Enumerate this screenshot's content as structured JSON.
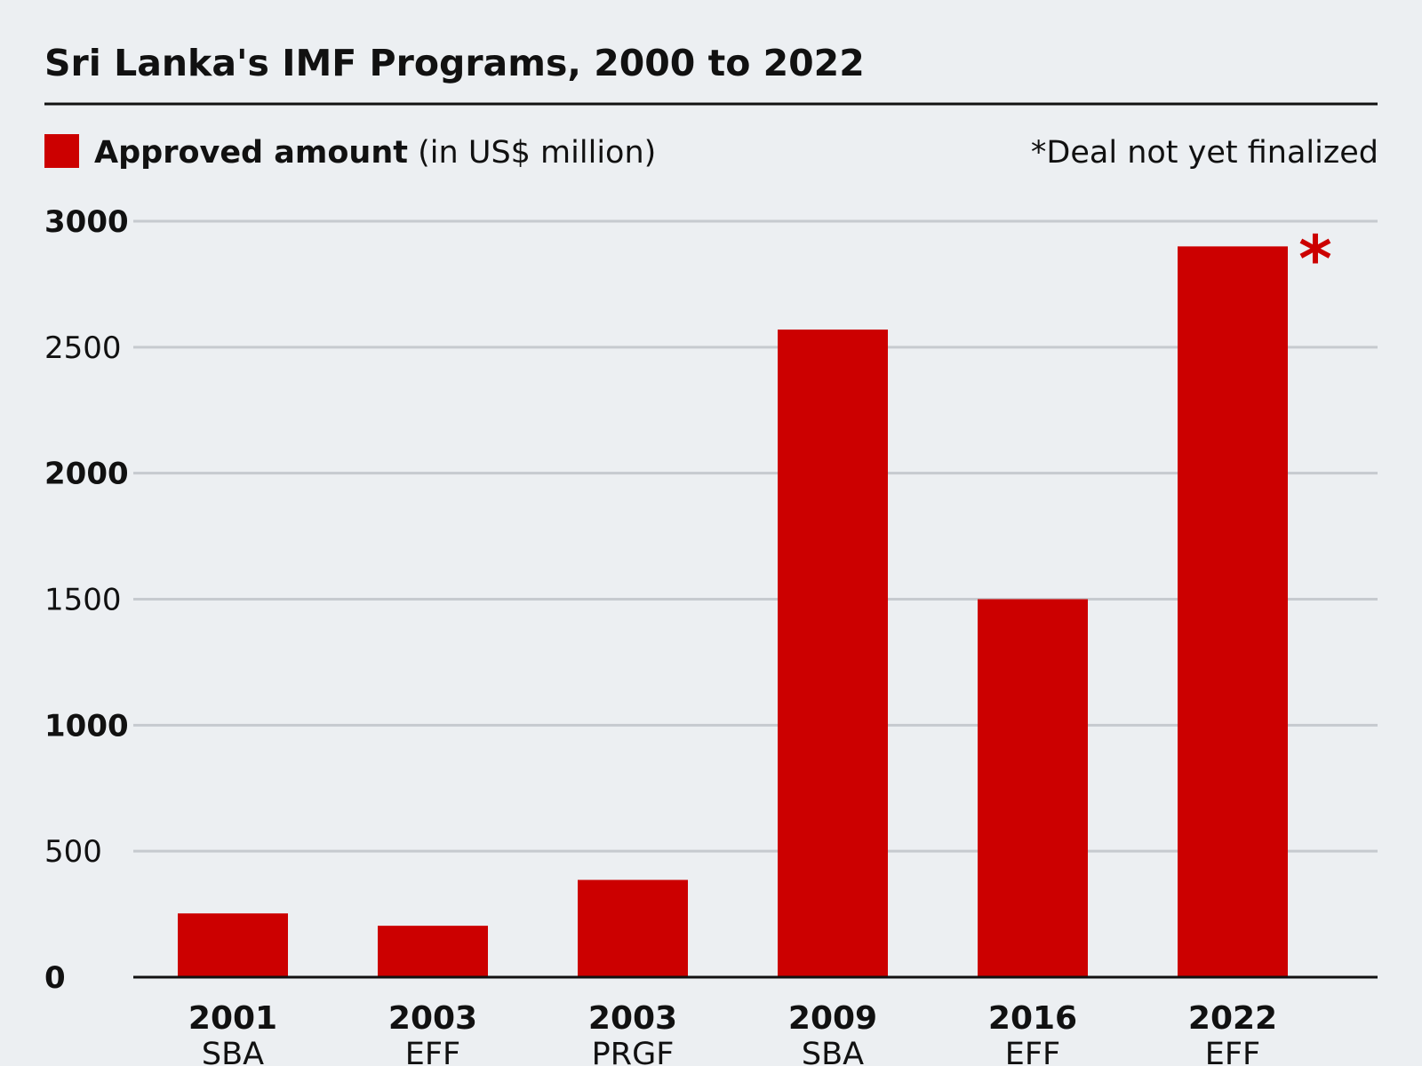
{
  "title": "Sri Lanka's IMF Programs, 2000 to 2022",
  "legend": {
    "label_bold": "Approved amount",
    "label_normal": "(in US$ million)",
    "color": "#cc0000"
  },
  "note": "*Deal not yet finalized",
  "marker_symbol": "*",
  "chart_data": {
    "type": "bar",
    "categories": [
      {
        "year": "2001",
        "program": "SBA"
      },
      {
        "year": "2003",
        "program": "EFF"
      },
      {
        "year": "2003",
        "program": "PRGF"
      },
      {
        "year": "2009",
        "program": "SBA"
      },
      {
        "year": "2016",
        "program": "EFF"
      },
      {
        "year": "2022",
        "program": "EFF"
      }
    ],
    "series": [
      {
        "values": [
          253,
          204,
          386,
          2570,
          1500,
          2900
        ],
        "color": "#cc0000"
      }
    ],
    "starred_category_index": 5,
    "ylim": [
      0,
      3000
    ],
    "yticks": [
      {
        "value": 0,
        "label": "0",
        "bold": true
      },
      {
        "value": 500,
        "label": "500",
        "bold": false
      },
      {
        "value": 1000,
        "label": "1000",
        "bold": true
      },
      {
        "value": 1500,
        "label": "1500",
        "bold": false
      },
      {
        "value": 2000,
        "label": "2000",
        "bold": true
      },
      {
        "value": 2500,
        "label": "2500",
        "bold": false
      },
      {
        "value": 3000,
        "label": "3000",
        "bold": true
      }
    ],
    "grid": true,
    "legend_position": "top-left"
  }
}
